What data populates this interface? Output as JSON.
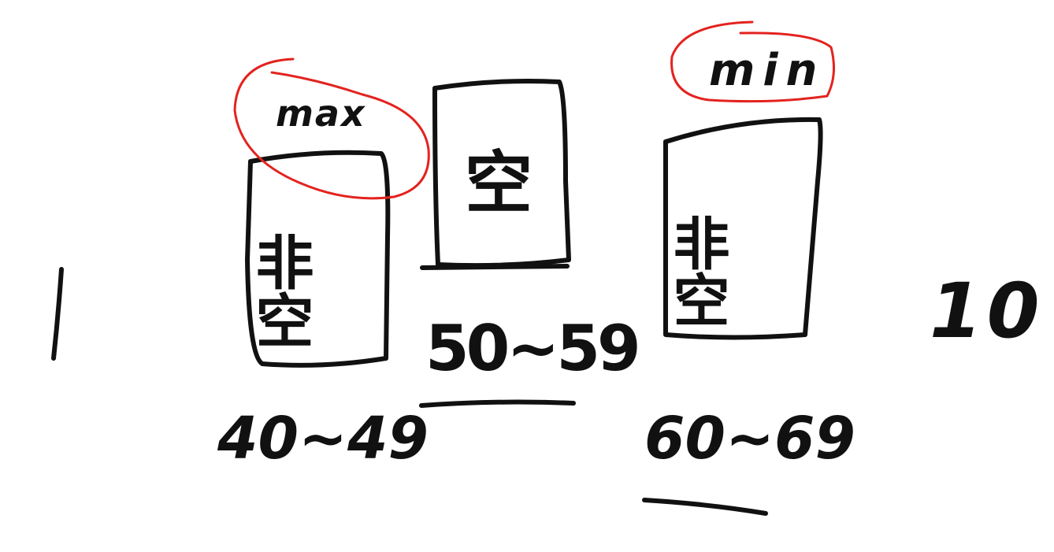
{
  "left_bound": "1",
  "right_bound": "10",
  "buckets": [
    {
      "range": "40~49",
      "content": "非空",
      "tag": "max"
    },
    {
      "range": "50~59",
      "content": "空"
    },
    {
      "range": "60~69",
      "content": "非空",
      "tag": "min"
    }
  ],
  "colors": {
    "ink": "#111111",
    "highlight": "#e3231f",
    "background": "#ffffff"
  }
}
